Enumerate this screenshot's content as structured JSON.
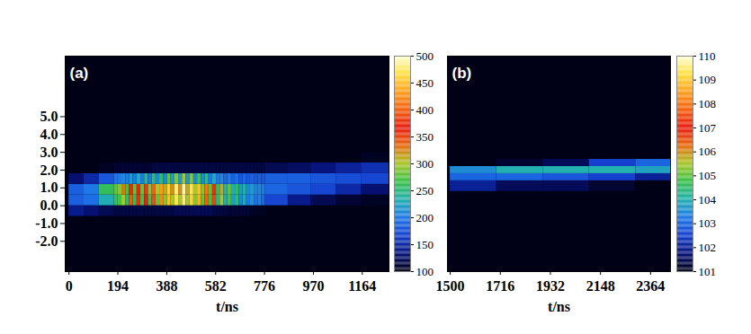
{
  "chart_data": [
    {
      "type": "heatmap",
      "title": "(a)",
      "xlabel": "t/ns",
      "xlim": [
        -15,
        1270
      ],
      "xticks": [
        0,
        194,
        388,
        582,
        776,
        970,
        1164
      ],
      "ylim": [
        -3.7,
        8.4
      ],
      "yticks": [
        {
          "value": 5,
          "label": "5.0"
        },
        {
          "value": 4,
          "label": "4.0"
        },
        {
          "value": 3,
          "label": "3.0"
        },
        {
          "value": 2,
          "label": "2.0"
        },
        {
          "value": 1,
          "label": "1.0"
        },
        {
          "value": 0,
          "label": "0.0"
        },
        {
          "value": -1,
          "label": "-1.0"
        },
        {
          "value": -2,
          "label": "-2.0"
        }
      ],
      "t_edges": [
        0,
        60,
        120,
        180,
        195,
        210,
        225,
        240,
        255,
        270,
        285,
        300,
        315,
        330,
        345,
        360,
        375,
        390,
        405,
        420,
        435,
        450,
        465,
        480,
        495,
        510,
        525,
        540,
        555,
        570,
        585,
        600,
        615,
        630,
        645,
        660,
        675,
        690,
        705,
        720,
        735,
        750,
        765,
        780,
        870,
        960,
        1060,
        1160,
        1270
      ],
      "y_edges": [
        -0.6,
        0,
        0.6,
        1.2,
        1.8,
        2.4,
        3.0
      ],
      "cells": [
        [
          140,
          185,
          185,
          130,
          100,
          100
        ],
        [
          130,
          195,
          200,
          150,
          100,
          100
        ],
        [
          120,
          230,
          260,
          180,
          105,
          100
        ],
        [
          115,
          260,
          280,
          200,
          110,
          100
        ],
        [
          115,
          270,
          290,
          200,
          110,
          100
        ],
        [
          115,
          300,
          330,
          210,
          110,
          100
        ],
        [
          115,
          250,
          270,
          200,
          110,
          100
        ],
        [
          115,
          340,
          360,
          220,
          110,
          100
        ],
        [
          115,
          260,
          280,
          200,
          110,
          100
        ],
        [
          115,
          360,
          370,
          230,
          110,
          100
        ],
        [
          115,
          270,
          280,
          200,
          110,
          100
        ],
        [
          115,
          370,
          380,
          240,
          110,
          100
        ],
        [
          115,
          270,
          290,
          200,
          110,
          100
        ],
        [
          115,
          390,
          400,
          250,
          115,
          100
        ],
        [
          115,
          280,
          300,
          210,
          115,
          100
        ],
        [
          115,
          420,
          430,
          260,
          115,
          100
        ],
        [
          115,
          290,
          310,
          210,
          115,
          100
        ],
        [
          115,
          450,
          460,
          280,
          115,
          100
        ],
        [
          115,
          300,
          320,
          220,
          115,
          100
        ],
        [
          120,
          470,
          480,
          290,
          115,
          100
        ],
        [
          120,
          300,
          320,
          220,
          115,
          100
        ],
        [
          120,
          480,
          490,
          300,
          115,
          100
        ],
        [
          120,
          300,
          310,
          220,
          115,
          100
        ],
        [
          120,
          460,
          470,
          290,
          115,
          100
        ],
        [
          120,
          290,
          300,
          210,
          115,
          100
        ],
        [
          120,
          440,
          450,
          270,
          115,
          100
        ],
        [
          120,
          280,
          290,
          210,
          115,
          100
        ],
        [
          120,
          400,
          410,
          250,
          115,
          100
        ],
        [
          120,
          270,
          280,
          200,
          115,
          100
        ],
        [
          115,
          350,
          360,
          230,
          115,
          100
        ],
        [
          115,
          250,
          260,
          200,
          115,
          100
        ],
        [
          115,
          300,
          310,
          210,
          115,
          100
        ],
        [
          115,
          230,
          240,
          190,
          115,
          100
        ],
        [
          110,
          270,
          280,
          200,
          115,
          100
        ],
        [
          110,
          220,
          230,
          185,
          115,
          100
        ],
        [
          110,
          250,
          260,
          195,
          115,
          100
        ],
        [
          110,
          210,
          220,
          180,
          115,
          100
        ],
        [
          110,
          230,
          240,
          190,
          115,
          100
        ],
        [
          110,
          200,
          210,
          180,
          115,
          100
        ],
        [
          105,
          215,
          220,
          185,
          115,
          100
        ],
        [
          105,
          195,
          205,
          180,
          115,
          100
        ],
        [
          105,
          205,
          210,
          185,
          115,
          100
        ],
        [
          105,
          190,
          200,
          180,
          115,
          100
        ],
        [
          100,
          170,
          190,
          185,
          120,
          100
        ],
        [
          100,
          140,
          180,
          185,
          125,
          100
        ],
        [
          100,
          120,
          170,
          180,
          135,
          100
        ],
        [
          100,
          110,
          150,
          175,
          145,
          100
        ],
        [
          100,
          105,
          130,
          170,
          155,
          105
        ]
      ],
      "colorbar_range": [
        100,
        500
      ],
      "colorbar_ticks": [
        100,
        150,
        200,
        250,
        300,
        350,
        400,
        450,
        500
      ]
    },
    {
      "type": "heatmap",
      "title": "(b)",
      "xlabel": "t/ns",
      "tick_labels": "x",
      "xlim": [
        1488,
        2450
      ],
      "xticks": [
        1500,
        1716,
        1932,
        2148,
        2364
      ],
      "ylim": [
        -3.7,
        8.4
      ],
      "t_edges": [
        1500,
        1700,
        1900,
        2100,
        2300,
        2450
      ],
      "y_edges": [
        0.8,
        1.4,
        1.8,
        2.2,
        2.6
      ],
      "cells": [
        [
          102,
          103,
          103.5,
          101
        ],
        [
          101.5,
          103,
          104,
          101.2
        ],
        [
          101.5,
          102.8,
          104,
          101.5
        ],
        [
          101.2,
          102.5,
          104,
          102.5
        ],
        [
          101,
          102,
          103.8,
          103
        ]
      ],
      "colorbar_range": [
        101,
        110
      ],
      "colorbar_ticks": [
        101,
        102,
        103,
        104,
        105,
        106,
        107,
        108,
        109,
        110
      ]
    }
  ]
}
